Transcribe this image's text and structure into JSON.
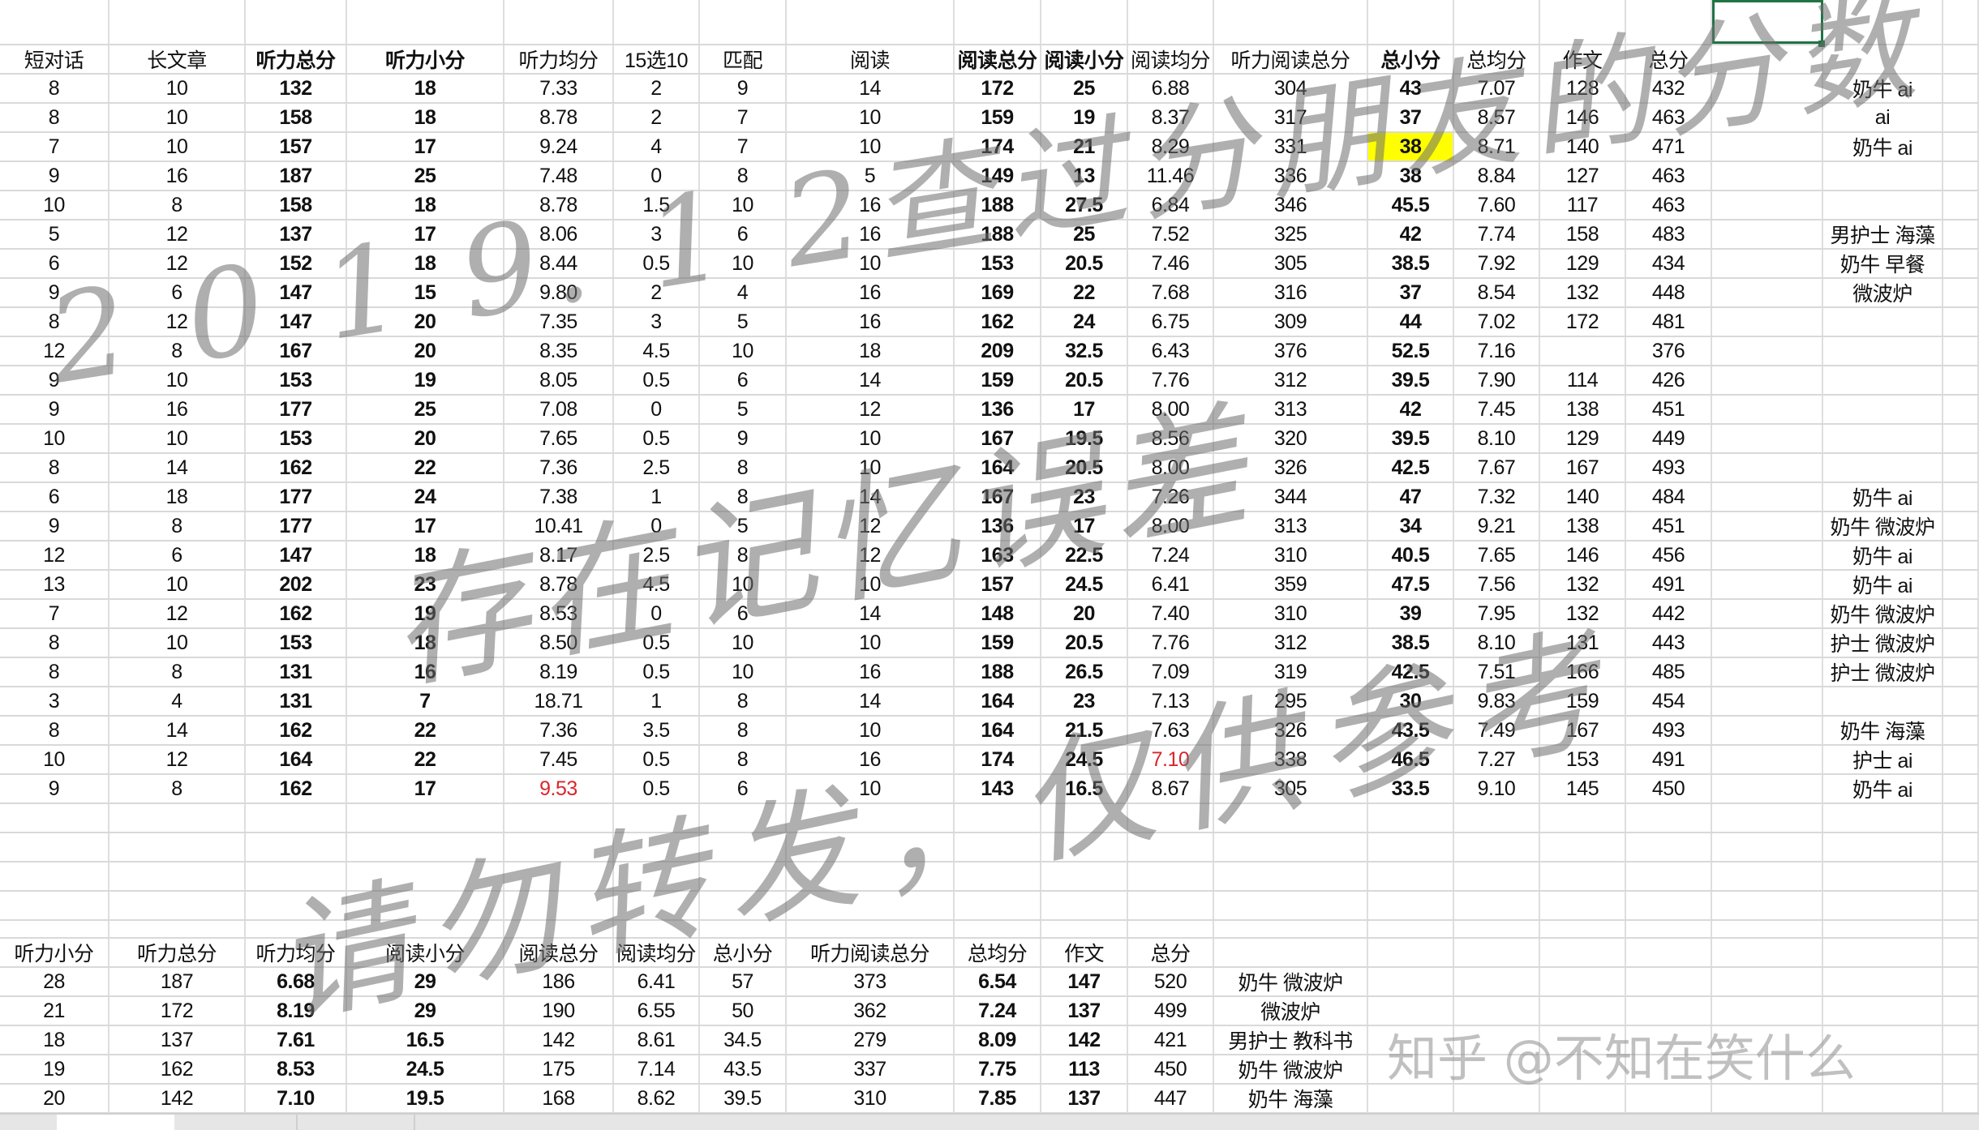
{
  "colors": {
    "highlight": "#ffff00",
    "red_text": "#d9262c",
    "selection": "#217346",
    "grid": "#d9d9d9"
  },
  "top_table": {
    "headers": [
      "短对话",
      "长文章",
      "听力总分",
      "听力小分",
      "听力均分",
      "15选10",
      "匹配",
      "阅读",
      "阅读总分",
      "阅读小分",
      "阅读均分",
      "听力阅读总分",
      "总小分",
      "总均分",
      "作文",
      "总分"
    ],
    "rows": [
      [
        "8",
        "10",
        "132",
        "18",
        "7.33",
        "2",
        "9",
        "14",
        "172",
        "25",
        "6.88",
        "304",
        "43",
        "7.07",
        "128",
        "432"
      ],
      [
        "8",
        "10",
        "158",
        "18",
        "8.78",
        "2",
        "7",
        "10",
        "159",
        "19",
        "8.37",
        "317",
        "37",
        "8.57",
        "146",
        "463"
      ],
      [
        "7",
        "10",
        "157",
        "17",
        "9.24",
        "4",
        "7",
        "10",
        "174",
        "21",
        "8.29",
        "331",
        "38",
        "8.71",
        "140",
        "471"
      ],
      [
        "9",
        "16",
        "187",
        "25",
        "7.48",
        "0",
        "8",
        "5",
        "149",
        "13",
        "11.46",
        "336",
        "38",
        "8.84",
        "127",
        "463"
      ],
      [
        "10",
        "8",
        "158",
        "18",
        "8.78",
        "1.5",
        "10",
        "16",
        "188",
        "27.5",
        "6.84",
        "346",
        "45.5",
        "7.60",
        "117",
        "463"
      ],
      [
        "5",
        "12",
        "137",
        "17",
        "8.06",
        "3",
        "6",
        "16",
        "188",
        "25",
        "7.52",
        "325",
        "42",
        "7.74",
        "158",
        "483"
      ],
      [
        "6",
        "12",
        "152",
        "18",
        "8.44",
        "0.5",
        "10",
        "10",
        "153",
        "20.5",
        "7.46",
        "305",
        "38.5",
        "7.92",
        "129",
        "434"
      ],
      [
        "9",
        "6",
        "147",
        "15",
        "9.80",
        "2",
        "4",
        "16",
        "169",
        "22",
        "7.68",
        "316",
        "37",
        "8.54",
        "132",
        "448"
      ],
      [
        "8",
        "12",
        "147",
        "20",
        "7.35",
        "3",
        "5",
        "16",
        "162",
        "24",
        "6.75",
        "309",
        "44",
        "7.02",
        "172",
        "481"
      ],
      [
        "12",
        "8",
        "167",
        "20",
        "8.35",
        "4.5",
        "10",
        "18",
        "209",
        "32.5",
        "6.43",
        "376",
        "52.5",
        "7.16",
        "",
        "376"
      ],
      [
        "9",
        "10",
        "153",
        "19",
        "8.05",
        "0.5",
        "6",
        "14",
        "159",
        "20.5",
        "7.76",
        "312",
        "39.5",
        "7.90",
        "114",
        "426"
      ],
      [
        "9",
        "16",
        "177",
        "25",
        "7.08",
        "0",
        "5",
        "12",
        "136",
        "17",
        "8.00",
        "313",
        "42",
        "7.45",
        "138",
        "451"
      ],
      [
        "10",
        "10",
        "153",
        "20",
        "7.65",
        "0.5",
        "9",
        "10",
        "167",
        "19.5",
        "8.56",
        "320",
        "39.5",
        "8.10",
        "129",
        "449"
      ],
      [
        "8",
        "14",
        "162",
        "22",
        "7.36",
        "2.5",
        "8",
        "10",
        "164",
        "20.5",
        "8.00",
        "326",
        "42.5",
        "7.67",
        "167",
        "493"
      ],
      [
        "6",
        "18",
        "177",
        "24",
        "7.38",
        "1",
        "8",
        "14",
        "167",
        "23",
        "7.26",
        "344",
        "47",
        "7.32",
        "140",
        "484"
      ],
      [
        "9",
        "8",
        "177",
        "17",
        "10.41",
        "0",
        "5",
        "12",
        "136",
        "17",
        "8.00",
        "313",
        "34",
        "9.21",
        "138",
        "451"
      ],
      [
        "12",
        "6",
        "147",
        "18",
        "8.17",
        "2.5",
        "8",
        "12",
        "163",
        "22.5",
        "7.24",
        "310",
        "40.5",
        "7.65",
        "146",
        "456"
      ],
      [
        "13",
        "10",
        "202",
        "23",
        "8.78",
        "4.5",
        "10",
        "10",
        "157",
        "24.5",
        "6.41",
        "359",
        "47.5",
        "7.56",
        "132",
        "491"
      ],
      [
        "7",
        "12",
        "162",
        "19",
        "8.53",
        "0",
        "6",
        "14",
        "148",
        "20",
        "7.40",
        "310",
        "39",
        "7.95",
        "132",
        "442"
      ],
      [
        "8",
        "10",
        "153",
        "18",
        "8.50",
        "0.5",
        "10",
        "10",
        "159",
        "20.5",
        "7.76",
        "312",
        "38.5",
        "8.10",
        "131",
        "443"
      ],
      [
        "8",
        "8",
        "131",
        "16",
        "8.19",
        "0.5",
        "10",
        "16",
        "188",
        "26.5",
        "7.09",
        "319",
        "42.5",
        "7.51",
        "166",
        "485"
      ],
      [
        "3",
        "4",
        "131",
        "7",
        "18.71",
        "1",
        "8",
        "14",
        "164",
        "23",
        "7.13",
        "295",
        "30",
        "9.83",
        "159",
        "454"
      ],
      [
        "8",
        "14",
        "162",
        "22",
        "7.36",
        "3.5",
        "8",
        "10",
        "164",
        "21.5",
        "7.63",
        "326",
        "43.5",
        "7.49",
        "167",
        "493"
      ],
      [
        "10",
        "12",
        "164",
        "22",
        "7.45",
        "0.5",
        "8",
        "16",
        "174",
        "24.5",
        "7.10",
        "338",
        "46.5",
        "7.27",
        "153",
        "491"
      ],
      [
        "9",
        "8",
        "162",
        "17",
        "9.53",
        "0.5",
        "6",
        "10",
        "143",
        "16.5",
        "8.67",
        "305",
        "33.5",
        "9.10",
        "145",
        "450"
      ]
    ],
    "notes": [
      "奶牛 ai",
      "ai",
      "奶牛 ai",
      "",
      "",
      "男护士 海藻",
      "奶牛 早餐",
      "微波炉",
      "",
      "",
      "",
      "",
      "",
      "",
      "奶牛 ai",
      "奶牛 微波炉",
      "奶牛 ai",
      "奶牛 ai",
      "奶牛 微波炉",
      "护士 微波炉",
      "护士 微波炉",
      "",
      "奶牛 海藻",
      "护士 ai",
      "奶牛 ai"
    ],
    "highlighted_cells": [
      {
        "row": 3,
        "column": "总小分",
        "fill": "#ffff00"
      }
    ],
    "red_cells": [
      {
        "row": 25,
        "column": "听力均分"
      },
      {
        "row": 24,
        "column": "阅读均分"
      }
    ]
  },
  "bottom_table": {
    "headers": [
      "听力小分",
      "听力总分",
      "听力均分",
      "阅读小分",
      "阅读总分",
      "阅读均分",
      "总小分",
      "听力阅读总分",
      "总均分",
      "作文",
      "总分"
    ],
    "rows": [
      [
        "28",
        "187",
        "6.68",
        "29",
        "186",
        "6.41",
        "57",
        "373",
        "6.54",
        "147",
        "520"
      ],
      [
        "21",
        "172",
        "8.19",
        "29",
        "190",
        "6.55",
        "50",
        "362",
        "7.24",
        "137",
        "499"
      ],
      [
        "18",
        "137",
        "7.61",
        "16.5",
        "142",
        "8.61",
        "34.5",
        "279",
        "8.09",
        "142",
        "421"
      ],
      [
        "19",
        "162",
        "8.53",
        "24.5",
        "175",
        "7.14",
        "43.5",
        "337",
        "7.75",
        "113",
        "450"
      ],
      [
        "20",
        "142",
        "7.10",
        "19.5",
        "168",
        "8.62",
        "39.5",
        "310",
        "7.85",
        "137",
        "447"
      ]
    ],
    "notes": [
      "奶牛 微波炉",
      "微波炉",
      "男护士 教科书",
      "奶牛 微波炉",
      "奶牛 海藻"
    ]
  },
  "watermarks": {
    "line1": "2 0 1 9. 1 2查过分朋友的分数",
    "line2": "存在记忆误差",
    "line3": "请勿转发，仅供参考",
    "credit": "知乎 @不知在笑什么"
  }
}
